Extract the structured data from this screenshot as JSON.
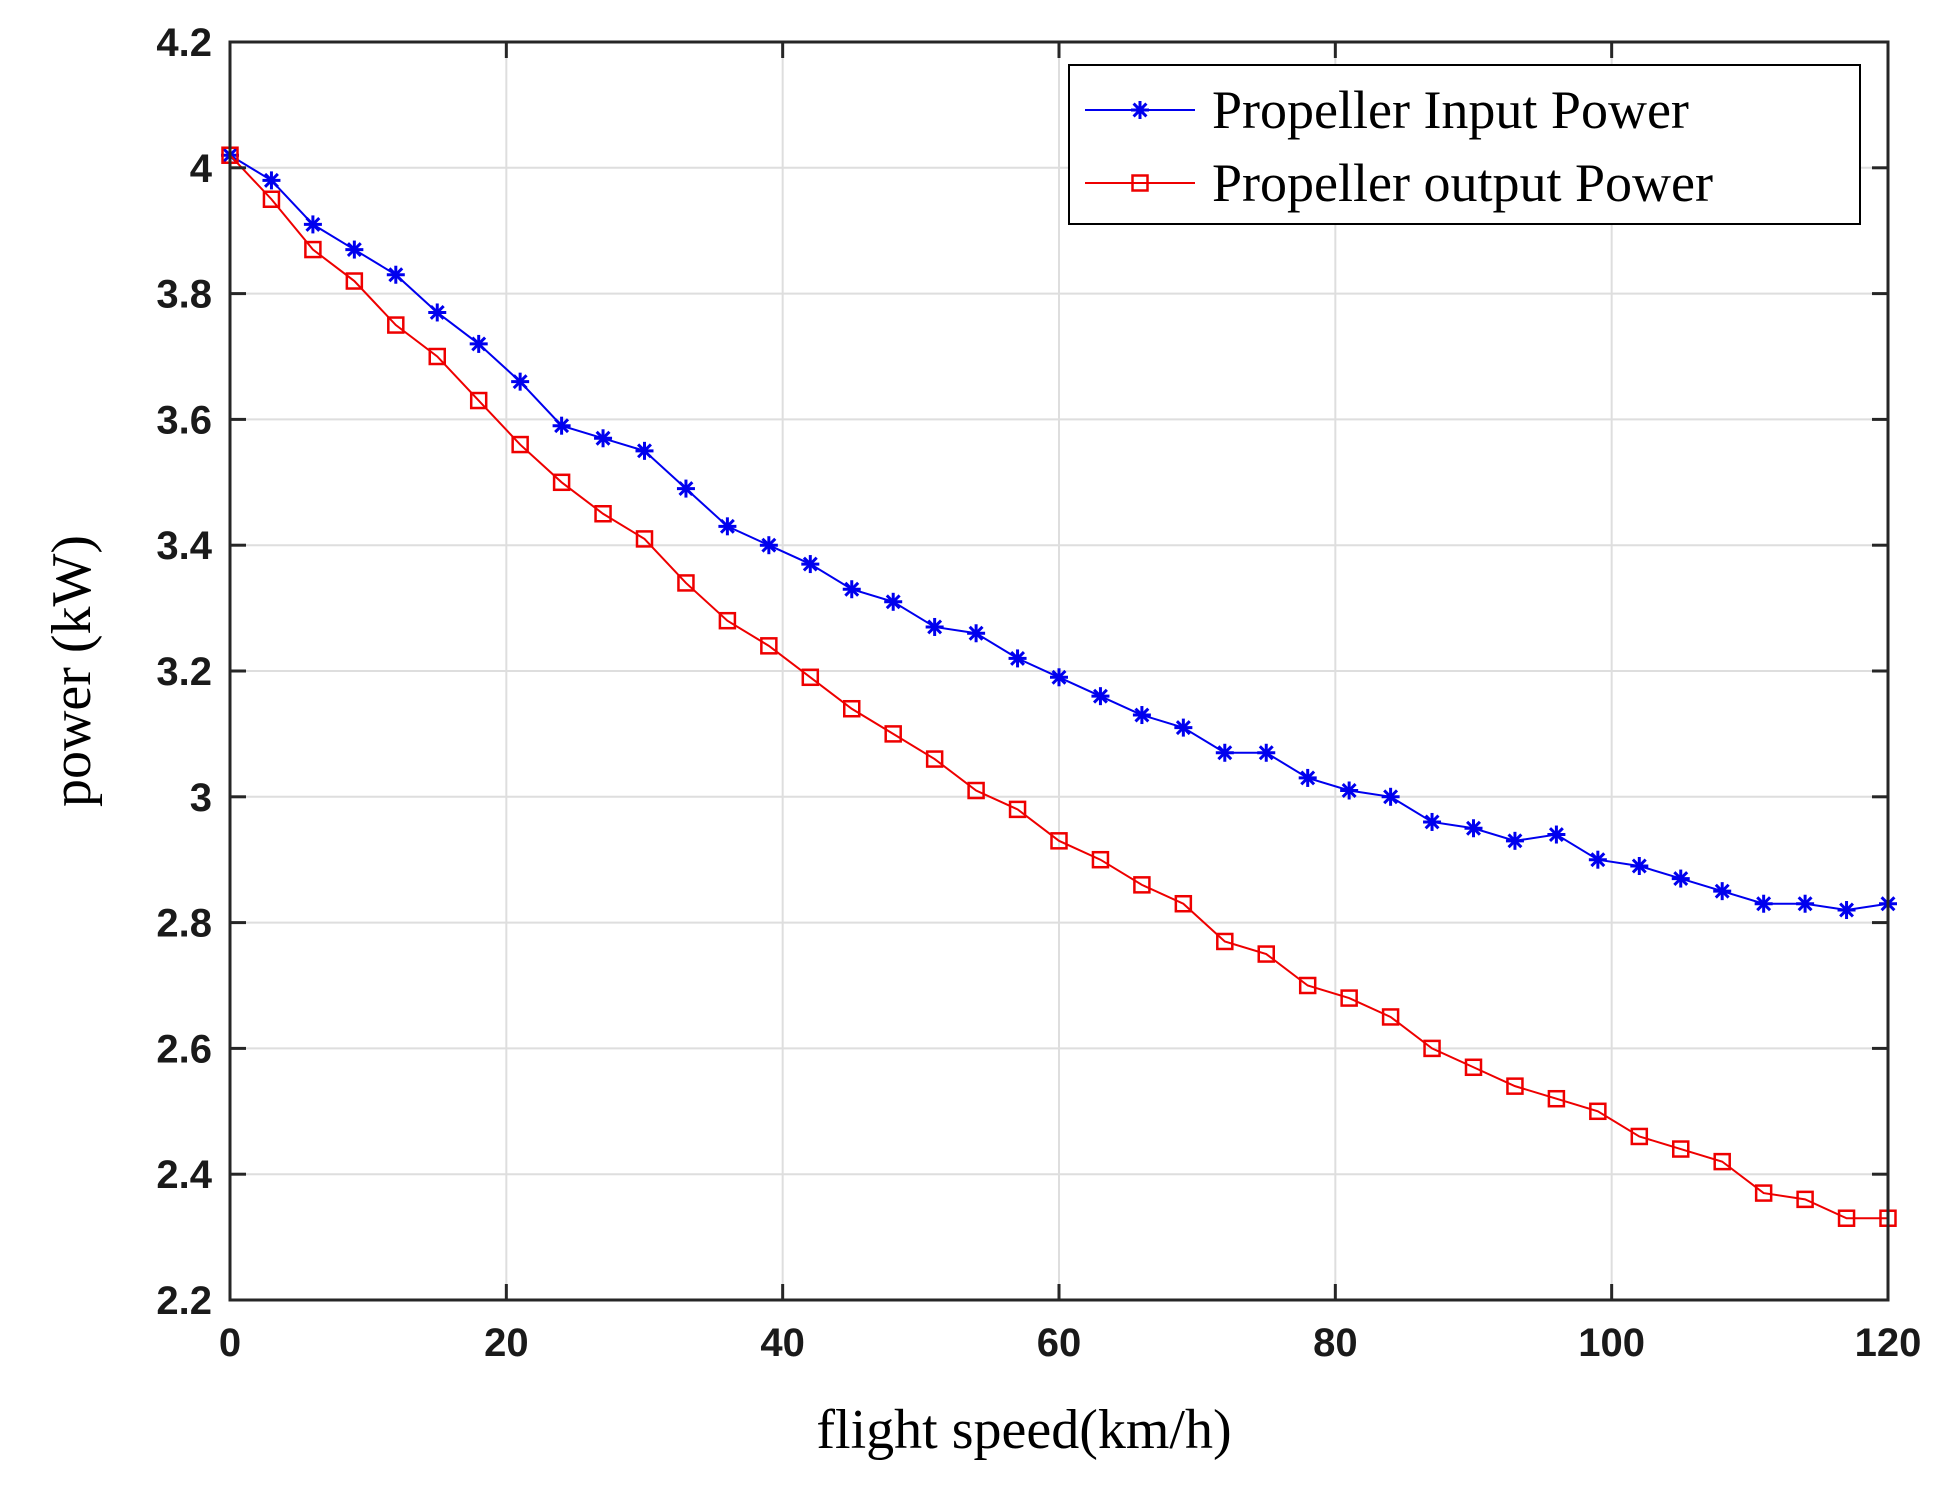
{
  "chart_data": {
    "type": "line",
    "title": "",
    "xlabel": "flight speed(km/h)",
    "ylabel": "power (kW)",
    "xlim": [
      0,
      120
    ],
    "ylim": [
      2.2,
      4.2
    ],
    "xticks": [
      0,
      20,
      40,
      60,
      80,
      100,
      120
    ],
    "xtick_labels": [
      "0",
      "20",
      "40",
      "60",
      "80",
      "100",
      "120"
    ],
    "yticks": [
      2.2,
      2.4,
      2.6,
      2.8,
      3.0,
      3.2,
      3.4,
      3.6,
      3.8,
      4.0,
      4.2
    ],
    "ytick_labels": [
      "2.2",
      "2.4",
      "2.6",
      "2.8",
      "3",
      "3.2",
      "3.4",
      "3.6",
      "3.8",
      "4",
      "4.2"
    ],
    "grid": true,
    "legend_position": "top-right",
    "x": [
      0,
      3,
      6,
      9,
      12,
      15,
      18,
      21,
      24,
      27,
      30,
      33,
      36,
      39,
      42,
      45,
      48,
      51,
      54,
      57,
      60,
      63,
      66,
      69,
      72,
      75,
      78,
      81,
      84,
      87,
      90,
      93,
      96,
      99,
      102,
      105,
      108,
      111,
      114,
      117,
      120
    ],
    "series": [
      {
        "name": "Propeller Input Power",
        "color": "#0000ee",
        "marker": "asterisk",
        "values": [
          4.02,
          3.98,
          3.91,
          3.87,
          3.83,
          3.77,
          3.72,
          3.66,
          3.59,
          3.57,
          3.55,
          3.49,
          3.43,
          3.4,
          3.37,
          3.33,
          3.31,
          3.27,
          3.26,
          3.22,
          3.19,
          3.16,
          3.13,
          3.11,
          3.07,
          3.07,
          3.03,
          3.01,
          3.0,
          2.96,
          2.95,
          2.93,
          2.94,
          2.9,
          2.89,
          2.87,
          2.85,
          2.83,
          2.83,
          2.82,
          2.83
        ]
      },
      {
        "name": "Propeller output Power",
        "color": "#ee0000",
        "marker": "square",
        "values": [
          4.02,
          3.95,
          3.87,
          3.82,
          3.75,
          3.7,
          3.63,
          3.56,
          3.5,
          3.45,
          3.41,
          3.34,
          3.28,
          3.24,
          3.19,
          3.14,
          3.1,
          3.06,
          3.01,
          2.98,
          2.93,
          2.9,
          2.86,
          2.83,
          2.77,
          2.75,
          2.7,
          2.68,
          2.65,
          2.6,
          2.57,
          2.54,
          2.52,
          2.5,
          2.46,
          2.44,
          2.42,
          2.37,
          2.36,
          2.33,
          2.33
        ]
      }
    ]
  }
}
